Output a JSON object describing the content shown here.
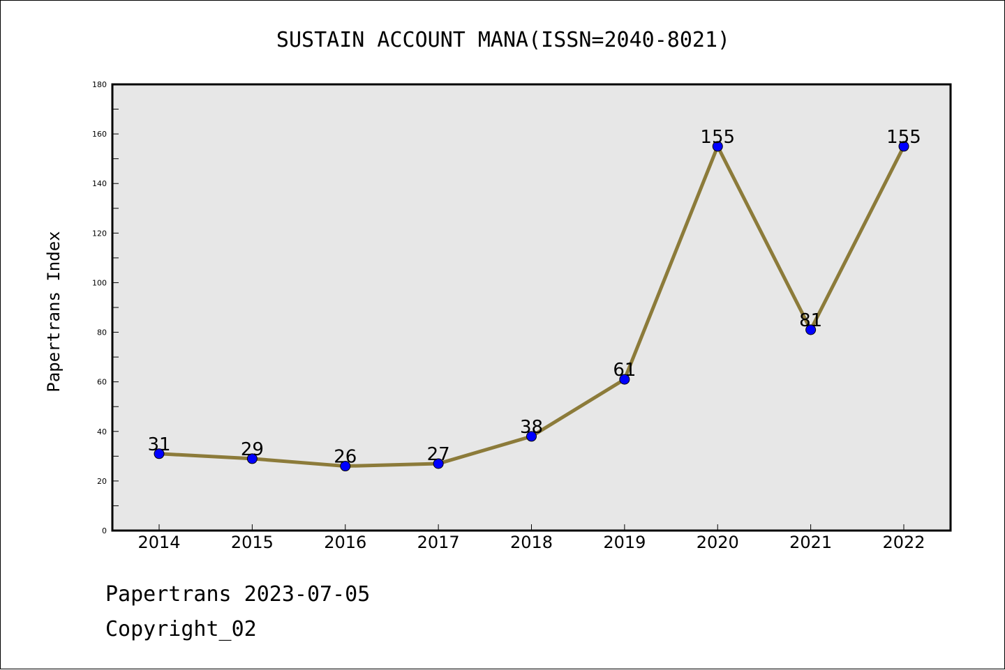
{
  "chart_data": {
    "type": "line",
    "title": "SUSTAIN ACCOUNT MANA(ISSN=2040-8021)",
    "xlabel": "",
    "ylabel": "Papertrans Index",
    "categories": [
      "2014",
      "2015",
      "2016",
      "2017",
      "2018",
      "2019",
      "2020",
      "2021",
      "2022"
    ],
    "series": [
      {
        "values": [
          31,
          29,
          26,
          27,
          38,
          61,
          155,
          81,
          155
        ]
      }
    ],
    "data_labels": [
      "31",
      "29",
      "26",
      "27",
      "38",
      "61",
      "155",
      "81",
      "155"
    ],
    "ylim": [
      0,
      180
    ],
    "yticks": [
      0,
      20,
      40,
      60,
      80,
      100,
      120,
      140,
      160,
      180
    ],
    "yticks_minor": [
      10,
      30,
      50,
      70,
      90,
      110,
      130,
      150,
      170
    ],
    "ytick_labels": [
      "0",
      "20",
      "40",
      "60",
      "80",
      "100",
      "120",
      "140",
      "160",
      "180"
    ],
    "grid": false,
    "legend": "none"
  },
  "colors": {
    "plot_background": "#e7e7e7",
    "line": "#8c7b3a",
    "marker": "#0000ff",
    "axis": "#000000",
    "text": "#000000"
  },
  "footer": {
    "date_text": "Papertrans 2023-07-05",
    "copyright_text": "Copyright_02"
  }
}
